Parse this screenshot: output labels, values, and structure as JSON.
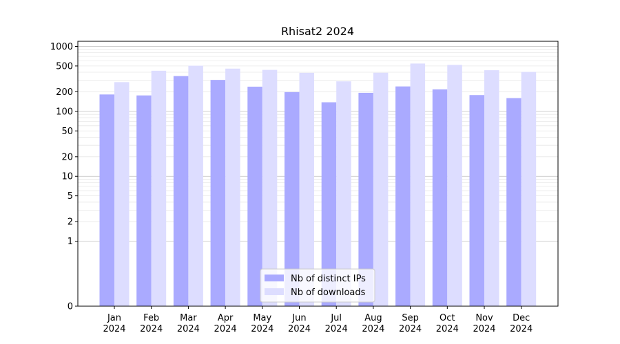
{
  "chart_data": {
    "type": "bar",
    "title": "Rhisat2 2024",
    "xlabel": "",
    "ylabel": "",
    "y_scale": "symlog",
    "ylim": [
      0,
      1200
    ],
    "y_ticks": [
      0,
      1,
      2,
      5,
      10,
      20,
      50,
      100,
      200,
      500,
      1000
    ],
    "y_tick_labels": [
      "0",
      "1",
      "2",
      "5",
      "10",
      "20",
      "50",
      "100",
      "200",
      "500",
      "1000"
    ],
    "grid": true,
    "legend_position": "bottom-center",
    "categories": [
      {
        "month": "Jan",
        "year": "2024"
      },
      {
        "month": "Feb",
        "year": "2024"
      },
      {
        "month": "Mar",
        "year": "2024"
      },
      {
        "month": "Apr",
        "year": "2024"
      },
      {
        "month": "May",
        "year": "2024"
      },
      {
        "month": "Jun",
        "year": "2024"
      },
      {
        "month": "Jul",
        "year": "2024"
      },
      {
        "month": "Aug",
        "year": "2024"
      },
      {
        "month": "Sep",
        "year": "2024"
      },
      {
        "month": "Oct",
        "year": "2024"
      },
      {
        "month": "Nov",
        "year": "2024"
      },
      {
        "month": "Dec",
        "year": "2024"
      }
    ],
    "series": [
      {
        "name": "Nb of distinct IPs",
        "color": "#aaaaff",
        "values": [
          182,
          176,
          350,
          305,
          240,
          198,
          138,
          193,
          242,
          218,
          178,
          160
        ]
      },
      {
        "name": "Nb of downloads",
        "color": "#ddddff",
        "values": [
          282,
          422,
          505,
          455,
          435,
          392,
          290,
          393,
          545,
          520,
          430,
          405
        ]
      }
    ]
  }
}
